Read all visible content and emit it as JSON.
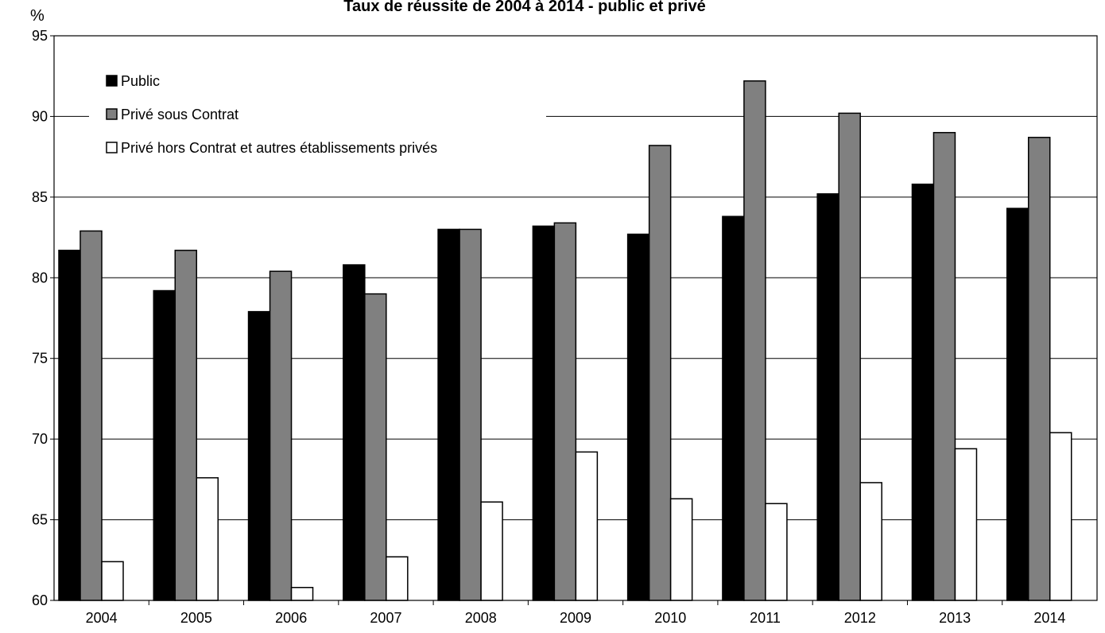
{
  "chart_data": {
    "type": "bar",
    "title": "Taux de réussite de 2004 à 2014 - public et privé",
    "ylabel": "%",
    "xlabel": "",
    "ylim": [
      60,
      95
    ],
    "yticks": [
      60,
      65,
      70,
      75,
      80,
      85,
      90,
      95
    ],
    "grid": true,
    "legend_position": "top-left",
    "categories": [
      "2004",
      "2005",
      "2006",
      "2007",
      "2008",
      "2009",
      "2010",
      "2011",
      "2012",
      "2013",
      "2014"
    ],
    "series": [
      {
        "name": "Public",
        "color": "#000000",
        "values": [
          81.7,
          79.2,
          77.9,
          80.8,
          83.0,
          83.2,
          82.7,
          83.8,
          85.2,
          85.8,
          84.3
        ]
      },
      {
        "name": "Privé sous Contrat",
        "color": "#808080",
        "values": [
          82.9,
          81.7,
          80.4,
          79.0,
          83.0,
          83.4,
          88.2,
          92.2,
          90.2,
          89.0,
          88.7
        ]
      },
      {
        "name": "Privé hors Contrat et autres établissements privés",
        "color": "#ffffff",
        "values": [
          62.4,
          67.6,
          60.8,
          62.7,
          66.1,
          69.2,
          66.3,
          66.0,
          67.3,
          69.4,
          70.4
        ]
      }
    ]
  }
}
